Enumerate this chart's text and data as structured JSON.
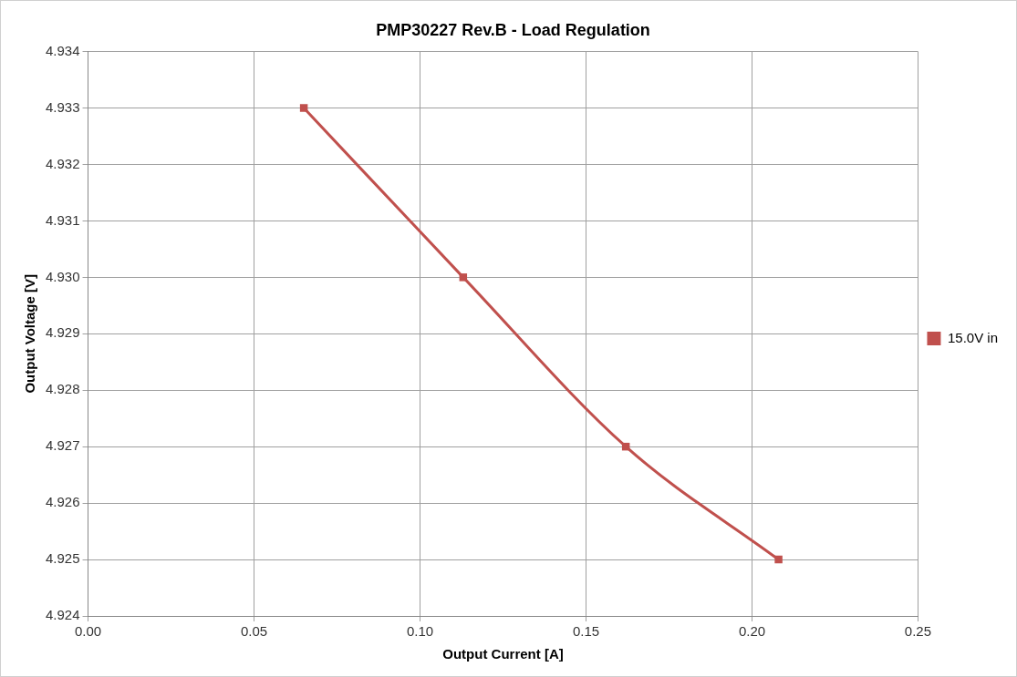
{
  "chart_data": {
    "type": "line",
    "title": "PMP30227 Rev.B - Load Regulation",
    "xlabel": "Output Current [A]",
    "ylabel": "Output Voltage [V]",
    "x": [
      0.065,
      0.113,
      0.162,
      0.208
    ],
    "series": [
      {
        "name": "15.0V in",
        "color": "#c0504d",
        "values": [
          4.933,
          4.93,
          4.927,
          4.925
        ]
      }
    ],
    "xlim": [
      0,
      0.25
    ],
    "xticks": [
      {
        "value": 0,
        "label": "0.00"
      },
      {
        "value": 0.05,
        "label": "0.05"
      },
      {
        "value": 0.1,
        "label": "0.10"
      },
      {
        "value": 0.15,
        "label": "0.15"
      },
      {
        "value": 0.2,
        "label": "0.20"
      },
      {
        "value": 0.25,
        "label": "0.25"
      }
    ],
    "ylim": [
      4.924,
      4.934
    ],
    "yticks": [
      4.924,
      4.925,
      4.926,
      4.927,
      4.928,
      4.929,
      {
        "value": 4.93,
        "label": "4.930"
      },
      4.931,
      4.932,
      4.933,
      4.934
    ],
    "grid": true,
    "legend": "right",
    "marker": "square",
    "line_style": "solid"
  }
}
